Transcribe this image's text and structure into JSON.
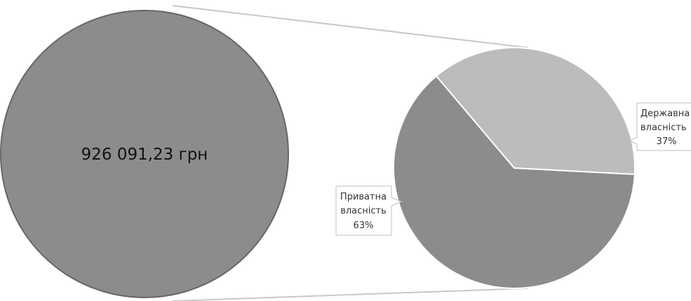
{
  "chart_data": {
    "type": "pie",
    "subtype": "pie-of-pie",
    "primary": {
      "slices": [
        {
          "label": "926 091,23 грн",
          "value": 926091.23,
          "color": "#8c8c8c"
        }
      ]
    },
    "secondary": {
      "slices": [
        {
          "name_lines": [
            "Приватна",
            "власність"
          ],
          "percent_label": "63%",
          "value": 63,
          "color": "#8c8c8c"
        },
        {
          "name_lines": [
            "Державна",
            "власність"
          ],
          "percent_label": "37%",
          "value": 37,
          "color": "#bcbcbc"
        }
      ]
    },
    "connector_color": "#c8c8c8",
    "slice_border_color": "#ffffff",
    "outline_color": "#666666"
  }
}
